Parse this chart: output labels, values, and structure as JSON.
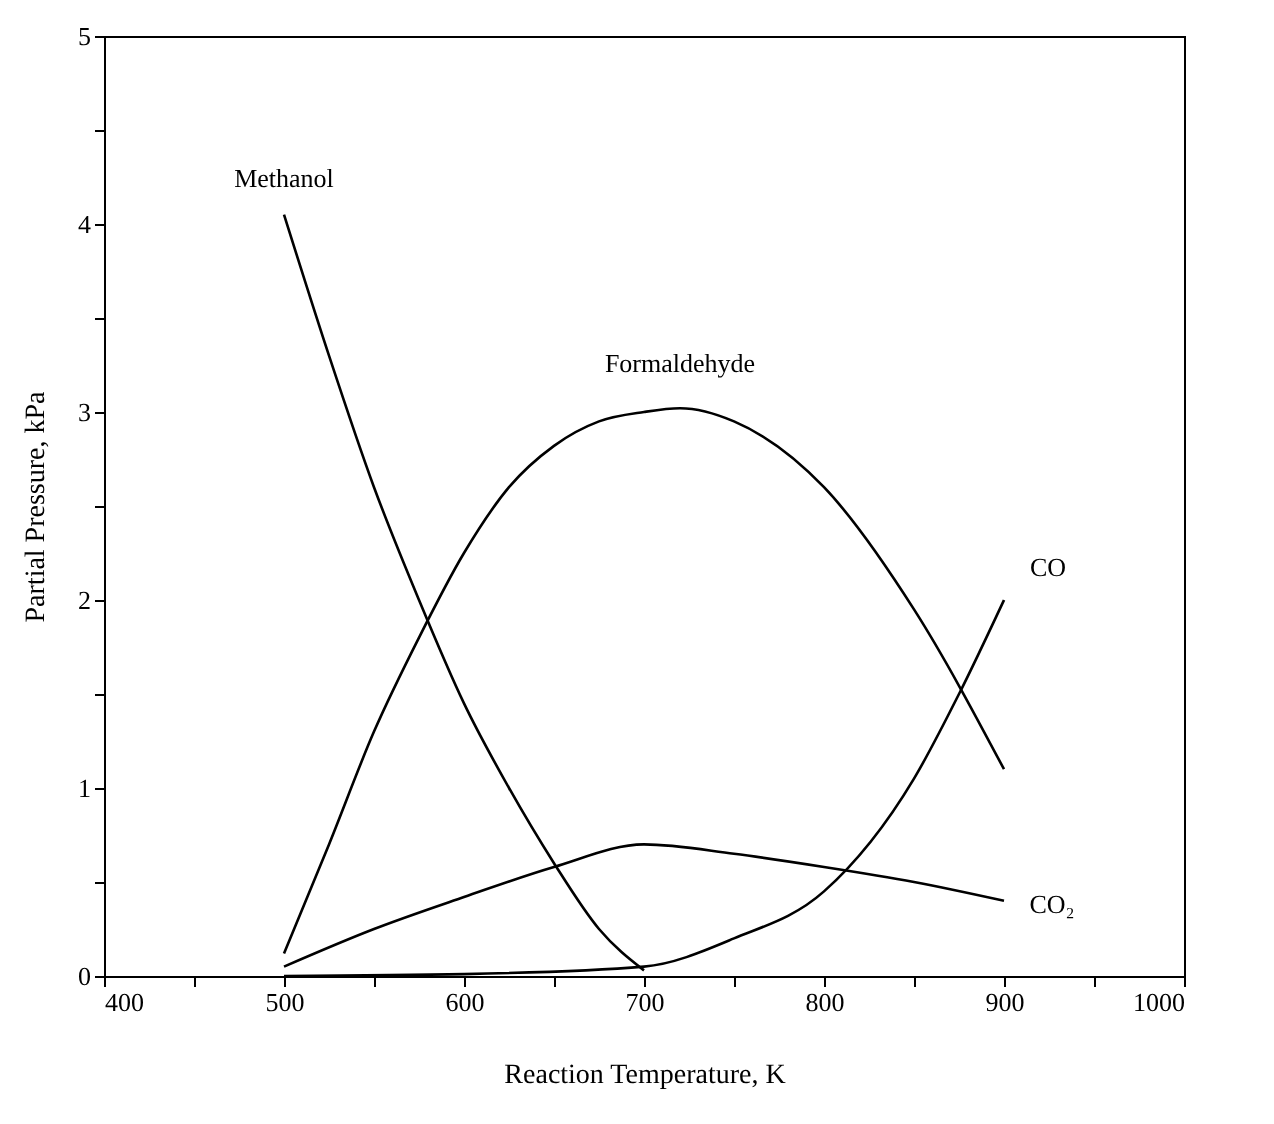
{
  "chart_data": {
    "type": "line",
    "xlabel": "Reaction Temperature, K",
    "ylabel": "Partial Pressure, kPa",
    "xlim": [
      400,
      1000
    ],
    "ylim": [
      0,
      5
    ],
    "xticks": [
      400,
      {
        "value": 450,
        "label": null
      },
      500,
      {
        "value": 550,
        "label": null
      },
      600,
      {
        "value": 650,
        "label": null
      },
      700,
      {
        "value": 750,
        "label": null
      },
      800,
      {
        "value": 850,
        "label": null
      },
      900,
      {
        "value": 950,
        "label": null
      },
      1000
    ],
    "yticks": [
      0,
      {
        "value": 0.5,
        "label": null
      },
      1,
      {
        "value": 1.5,
        "label": null
      },
      2,
      {
        "value": 2.5,
        "label": null
      },
      3,
      {
        "value": 3.5,
        "label": null
      },
      4,
      {
        "value": 4.5,
        "label": null
      },
      5
    ],
    "grid": false,
    "marker": "none",
    "line_style": "solid",
    "series": [
      {
        "name": "Methanol",
        "color": "#000000",
        "x": [
          500,
          525,
          550,
          575,
          600,
          625,
          650,
          675,
          700
        ],
        "values": [
          4.05,
          3.3,
          2.6,
          2.0,
          1.45,
          1.0,
          0.6,
          0.25,
          0.03
        ]
      },
      {
        "name": "Formaldehyde",
        "color": "#000000",
        "x": [
          500,
          525,
          550,
          575,
          600,
          625,
          650,
          675,
          700,
          720,
          750,
          800,
          850,
          900
        ],
        "values": [
          0.12,
          0.7,
          1.3,
          1.8,
          2.25,
          2.6,
          2.82,
          2.95,
          3.0,
          3.02,
          2.95,
          2.6,
          1.95,
          1.1
        ]
      },
      {
        "name": "CO",
        "color": "#000000",
        "x": [
          500,
          600,
          700,
          750,
          800,
          850,
          875,
          900
        ],
        "values": [
          0.0,
          0.01,
          0.05,
          0.2,
          0.45,
          1.05,
          1.5,
          2.0
        ]
      },
      {
        "name": "CO₂",
        "color": "#000000",
        "x": [
          500,
          550,
          600,
          650,
          700,
          750,
          800,
          850,
          900
        ],
        "values": [
          0.05,
          0.25,
          0.42,
          0.58,
          0.7,
          0.65,
          0.58,
          0.5,
          0.4
        ]
      }
    ]
  }
}
